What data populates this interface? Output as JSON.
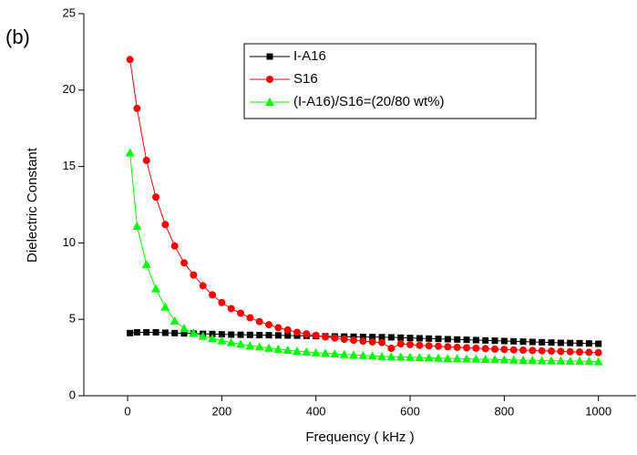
{
  "chart_data": {
    "type": "line",
    "annotation": "(b)",
    "x_label": "Frequency  ( kHz )",
    "y_label": "Dielectric Constant",
    "x": [
      5,
      20,
      40,
      60,
      80,
      100,
      120,
      140,
      160,
      180,
      200,
      220,
      240,
      260,
      280,
      300,
      320,
      340,
      360,
      380,
      400,
      420,
      440,
      460,
      480,
      500,
      520,
      540,
      560,
      580,
      600,
      620,
      640,
      660,
      680,
      700,
      720,
      740,
      760,
      780,
      800,
      820,
      840,
      860,
      880,
      900,
      920,
      940,
      960,
      980,
      1000
    ],
    "series": [
      {
        "name": "I-A16",
        "color": "#000000",
        "marker": "square",
        "values": [
          4.1,
          4.15,
          4.15,
          4.15,
          4.12,
          4.1,
          4.08,
          4.07,
          4.05,
          4.04,
          4.02,
          4.0,
          3.99,
          3.98,
          3.97,
          3.96,
          3.95,
          3.94,
          3.93,
          3.92,
          3.9,
          3.89,
          3.88,
          3.87,
          3.86,
          3.85,
          3.84,
          3.83,
          3.82,
          3.8,
          3.78,
          3.76,
          3.74,
          3.72,
          3.7,
          3.68,
          3.66,
          3.64,
          3.62,
          3.6,
          3.58,
          3.56,
          3.54,
          3.52,
          3.5,
          3.48,
          3.46,
          3.45,
          3.44,
          3.42,
          3.4
        ]
      },
      {
        "name": "S16",
        "color": "#ff0000",
        "marker": "circle",
        "values": [
          22,
          18.8,
          15.4,
          13,
          11.2,
          9.8,
          8.7,
          7.9,
          7.2,
          6.6,
          6.1,
          5.7,
          5.4,
          5.1,
          4.85,
          4.65,
          4.45,
          4.3,
          4.15,
          4.05,
          3.95,
          3.85,
          3.78,
          3.7,
          3.63,
          3.57,
          3.52,
          3.48,
          3.1,
          3.4,
          3.35,
          3.3,
          3.27,
          3.24,
          3.2,
          3.17,
          3.14,
          3.11,
          3.08,
          3.05,
          3.03,
          3.0,
          2.98,
          2.96,
          2.94,
          2.92,
          2.9,
          2.88,
          2.86,
          2.84,
          2.82
        ]
      },
      {
        "name": "(I-A16)/S16=(20/80 wt%)",
        "color": "#00ff00",
        "marker": "triangle",
        "values": [
          15.9,
          11.1,
          8.6,
          7.0,
          5.8,
          4.9,
          4.4,
          4.1,
          3.9,
          3.75,
          3.6,
          3.48,
          3.38,
          3.28,
          3.2,
          3.12,
          3.05,
          2.98,
          2.92,
          2.87,
          2.82,
          2.78,
          2.74,
          2.7,
          2.67,
          2.64,
          2.61,
          2.58,
          2.56,
          2.54,
          2.52,
          2.5,
          2.48,
          2.46,
          2.44,
          2.43,
          2.42,
          2.4,
          2.39,
          2.37,
          2.36,
          2.34,
          2.33,
          2.32,
          2.3,
          2.29,
          2.28,
          2.27,
          2.26,
          2.25,
          2.23
        ]
      }
    ],
    "xlim": [
      -93,
      1080
    ],
    "ylim": [
      0,
      25
    ],
    "xticks": [
      0,
      200,
      400,
      600,
      800,
      1000
    ],
    "yticks": [
      0,
      5,
      10,
      15,
      20,
      25
    ],
    "grid": false,
    "legend": "top-right"
  }
}
